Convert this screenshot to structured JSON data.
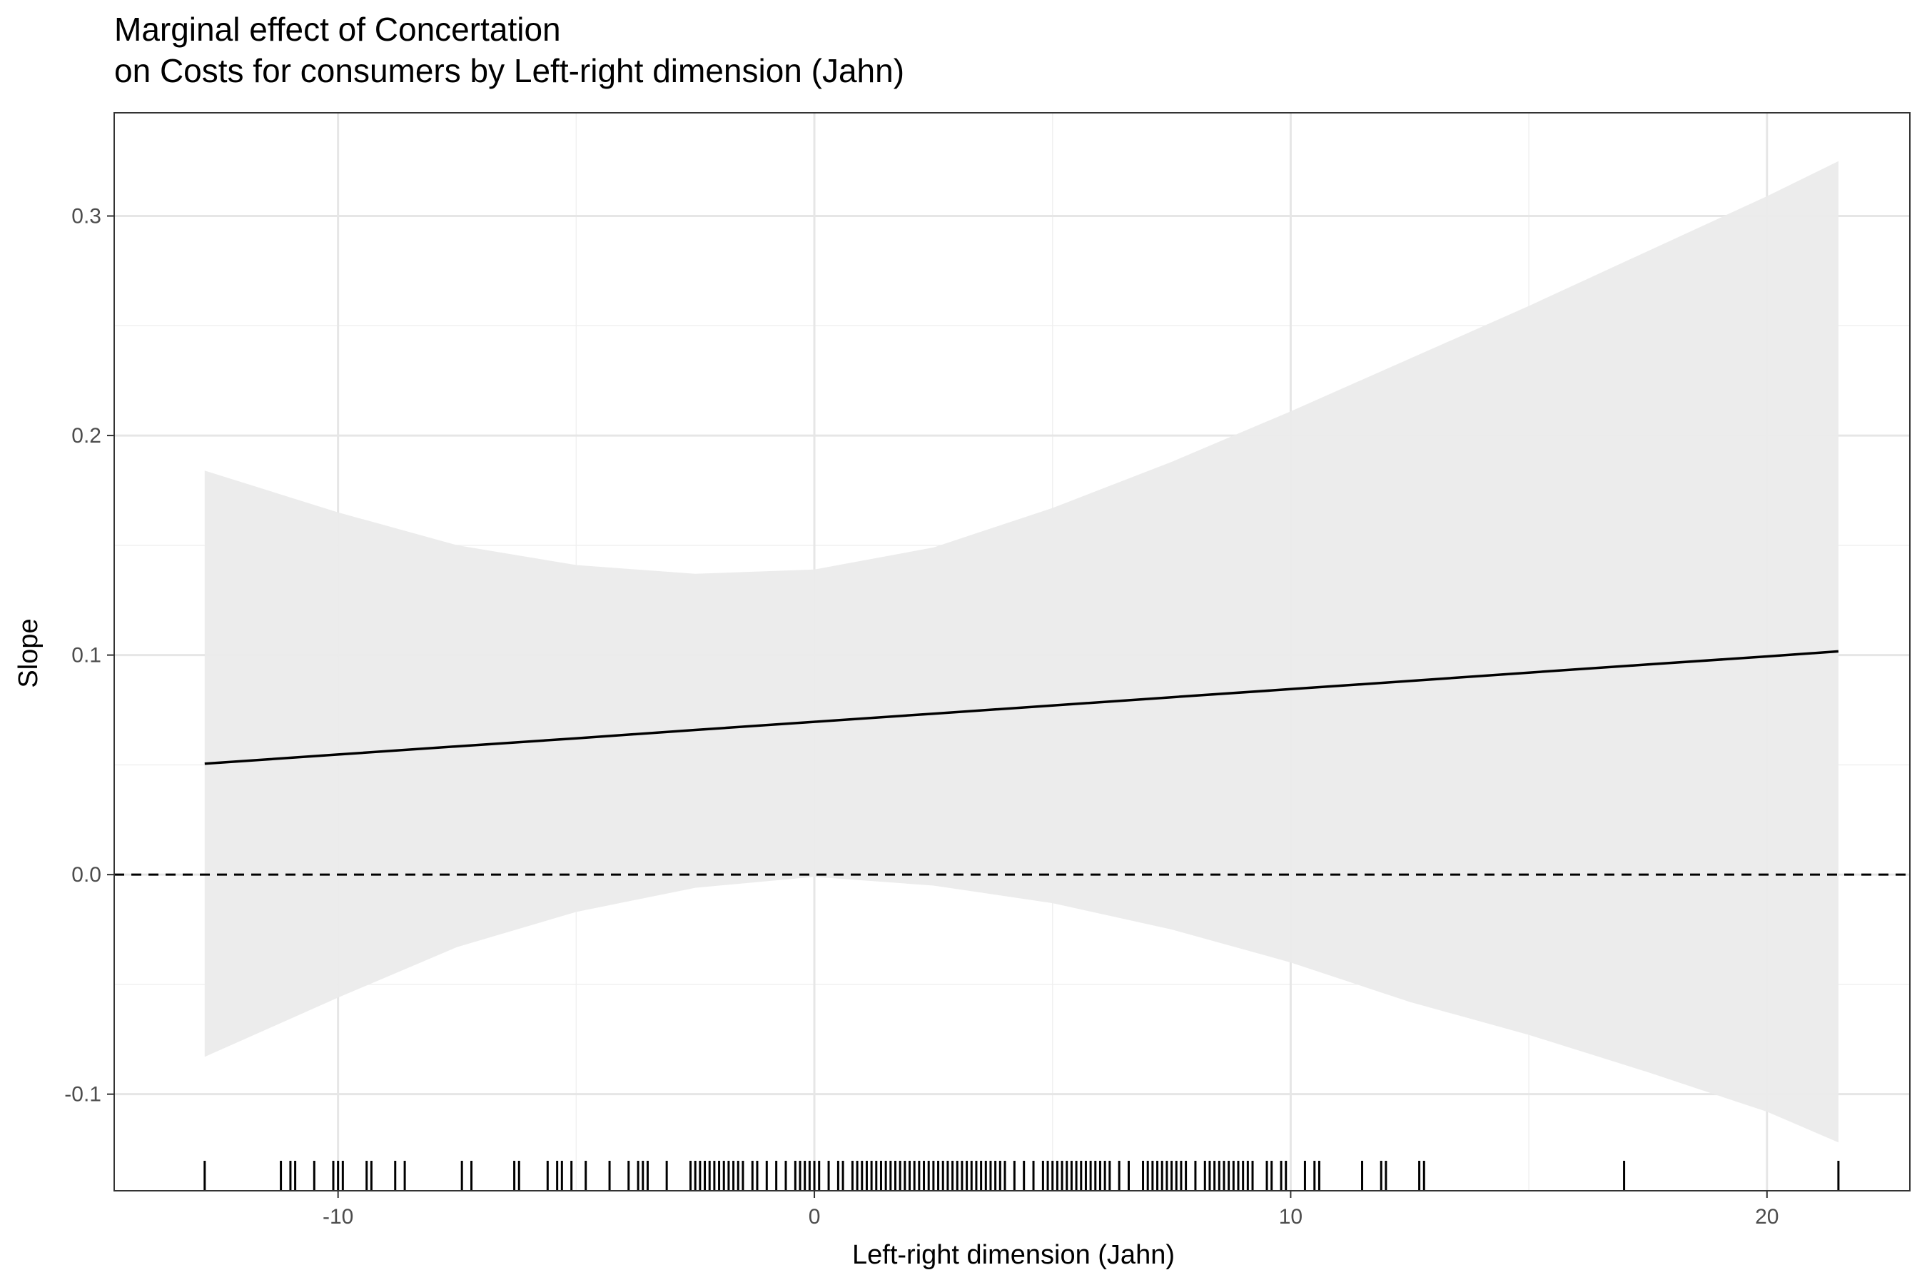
{
  "chart_data": {
    "type": "line",
    "title": "Marginal effect of Concertation",
    "subtitle": "on Costs for consumers by Left-right dimension (Jahn)",
    "xlabel": "Left-right dimension (Jahn)",
    "ylabel": "Slope",
    "xlim": [
      -14.7,
      23.0
    ],
    "ylim": [
      -0.144,
      0.347
    ],
    "x_ticks": [
      -10,
      0,
      10,
      20
    ],
    "x_tick_labels": [
      "-10",
      "0",
      "10",
      "20"
    ],
    "y_ticks": [
      -0.1,
      0.0,
      0.1,
      0.2,
      0.3
    ],
    "y_tick_labels": [
      "-0.1",
      "0.0",
      "0.1",
      "0.2",
      "0.3"
    ],
    "grid": true,
    "reference_line": {
      "y": 0.0,
      "style": "dashed"
    },
    "series": [
      {
        "x": [
          -12.8,
          -10,
          -7.5,
          -5,
          -2.5,
          0,
          2.5,
          5,
          7.5,
          10,
          12.5,
          15,
          17.5,
          20,
          21.5
        ],
        "values": [
          0.0505,
          0.0547,
          0.0584,
          0.0621,
          0.0659,
          0.0696,
          0.0733,
          0.077,
          0.0808,
          0.0845,
          0.0882,
          0.092,
          0.0957,
          0.0994,
          0.1017
        ],
        "ci_upper": [
          0.184,
          0.165,
          0.15,
          0.141,
          0.137,
          0.139,
          0.149,
          0.167,
          0.188,
          0.211,
          0.235,
          0.259,
          0.284,
          0.309,
          0.325
        ],
        "ci_lower": [
          -0.083,
          -0.056,
          -0.033,
          -0.017,
          -0.006,
          -0.001,
          -0.005,
          -0.013,
          -0.025,
          -0.04,
          -0.058,
          -0.073,
          -0.09,
          -0.108,
          -0.122
        ]
      }
    ],
    "rug_x": [
      -12.8,
      -11.2,
      -11.0,
      -10.9,
      -10.5,
      -10.1,
      -10.0,
      -9.9,
      -9.4,
      -9.3,
      -8.8,
      -8.6,
      -7.4,
      -7.2,
      -6.3,
      -6.2,
      -5.6,
      -5.4,
      -5.3,
      -5.1,
      -4.8,
      -4.3,
      -3.9,
      -3.7,
      -3.6,
      -3.5,
      -3.1,
      -2.6,
      -2.5,
      -2.4,
      -2.3,
      -2.2,
      -2.1,
      -2.0,
      -1.9,
      -1.8,
      -1.7,
      -1.6,
      -1.5,
      -1.3,
      -1.2,
      -1.0,
      -0.8,
      -0.6,
      -0.4,
      -0.3,
      -0.2,
      -0.1,
      0.0,
      0.1,
      0.3,
      0.5,
      0.6,
      0.8,
      0.9,
      1.0,
      1.1,
      1.2,
      1.3,
      1.4,
      1.5,
      1.6,
      1.7,
      1.8,
      1.9,
      2.0,
      2.1,
      2.2,
      2.3,
      2.4,
      2.5,
      2.6,
      2.7,
      2.8,
      2.9,
      3.0,
      3.1,
      3.2,
      3.3,
      3.4,
      3.5,
      3.6,
      3.7,
      3.8,
      3.9,
      4.0,
      4.2,
      4.4,
      4.6,
      4.8,
      4.9,
      5.0,
      5.1,
      5.2,
      5.3,
      5.4,
      5.5,
      5.6,
      5.7,
      5.8,
      5.9,
      6.0,
      6.1,
      6.2,
      6.4,
      6.6,
      6.9,
      7.0,
      7.1,
      7.2,
      7.3,
      7.4,
      7.5,
      7.6,
      7.7,
      7.8,
      8.0,
      8.2,
      8.3,
      8.4,
      8.5,
      8.6,
      8.7,
      8.8,
      8.9,
      9.0,
      9.1,
      9.2,
      9.5,
      9.6,
      9.8,
      9.9,
      10.3,
      10.5,
      10.6,
      11.5,
      11.9,
      12.0,
      12.7,
      12.8,
      17.0,
      21.5
    ]
  }
}
